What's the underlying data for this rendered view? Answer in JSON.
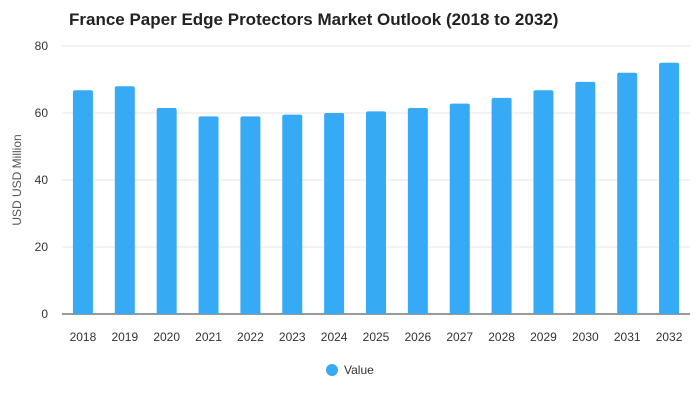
{
  "chart_data": {
    "type": "bar",
    "title": "France Paper Edge Protectors Market Outlook (2018 to 2032)",
    "xlabel": "",
    "ylabel": "USD USD Million",
    "categories": [
      "2018",
      "2019",
      "2020",
      "2021",
      "2022",
      "2023",
      "2024",
      "2025",
      "2026",
      "2027",
      "2028",
      "2029",
      "2030",
      "2031",
      "2032"
    ],
    "series": [
      {
        "name": "Value",
        "color": "#36aaf5",
        "values": [
          66.8,
          68.0,
          61.5,
          59.0,
          59.0,
          59.5,
          60.0,
          60.5,
          61.5,
          62.8,
          64.5,
          66.8,
          69.3,
          72.0,
          75.0
        ]
      }
    ],
    "ylim": [
      0,
      80
    ],
    "yticks": [
      0,
      20,
      40,
      60,
      80
    ],
    "grid": true,
    "legend_position": "bottom-center"
  }
}
